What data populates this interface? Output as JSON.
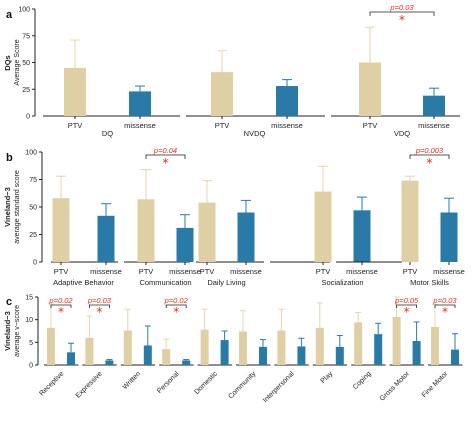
{
  "colors": {
    "PTV": "#dfcfa4",
    "missense": "#2a7aa7",
    "whisker_PTV": "#e3d6b3",
    "whisker_missense": "#2a7aa7",
    "sig": "#e0301e"
  },
  "chart_data": [
    {
      "panel": "a",
      "type": "bar",
      "row_label": "DQs",
      "ylabel": "Average Score",
      "ylim": [
        0,
        100
      ],
      "yticks": [
        0,
        25,
        50,
        75,
        100
      ],
      "groups": [
        "DQ",
        "NVDQ",
        "VDQ"
      ],
      "series": [
        {
          "name": "PTV",
          "values": [
            45,
            41,
            50
          ],
          "errors": [
            26,
            20,
            33
          ]
        },
        {
          "name": "missense",
          "values": [
            23,
            28,
            19
          ],
          "errors": [
            5,
            6,
            7
          ]
        }
      ],
      "tick_labels": [
        "PTV",
        "missense"
      ],
      "annotations": [
        {
          "group": 2,
          "text": "p=0.03",
          "star": "*"
        }
      ]
    },
    {
      "panel": "b",
      "type": "bar",
      "row_label": "Vineland−3",
      "ylabel": "average standard score",
      "ylim": [
        0,
        100
      ],
      "yticks": [
        0,
        25,
        50,
        75,
        100
      ],
      "groups": [
        "Adaptive Behavior",
        "Communication",
        "Daily Living",
        "Socialization",
        "Motor Skills"
      ],
      "series": [
        {
          "name": "PTV",
          "values": [
            58,
            57,
            54,
            64,
            74
          ],
          "errors": [
            20,
            27,
            20,
            23,
            4
          ]
        },
        {
          "name": "missense",
          "values": [
            42,
            31,
            45,
            47,
            45
          ],
          "errors": [
            11,
            12,
            11,
            12,
            13
          ]
        }
      ],
      "tick_labels": [
        "PTV",
        "missense"
      ],
      "annotations": [
        {
          "group": 1,
          "text": "p=0.04",
          "star": "*"
        },
        {
          "group": 4,
          "text": "p=0.003",
          "star": "*"
        }
      ]
    },
    {
      "panel": "c",
      "type": "bar",
      "row_label": "Vineland−3",
      "ylabel": "average v−score",
      "ylim": [
        0,
        15
      ],
      "yticks": [
        0,
        5,
        10,
        15
      ],
      "categories": [
        "Receptive",
        "Expressive",
        "Written",
        "Personal",
        "Domestic",
        "Community",
        "Interpersonal",
        "Play",
        "Coping",
        "Gross Motor",
        "Fine Motor"
      ],
      "series": [
        {
          "name": "PTV",
          "values": [
            8.2,
            6.0,
            7.6,
            3.5,
            7.8,
            7.4,
            7.6,
            8.2,
            9.4,
            10.6,
            8.4
          ],
          "errors": [
            5.3,
            4.8,
            4.7,
            2.2,
            4.5,
            4.6,
            4.7,
            5.5,
            2.2,
            4.4,
            5.0
          ]
        },
        {
          "name": "missense",
          "values": [
            2.8,
            1.0,
            4.3,
            1.0,
            5.5,
            4.0,
            4.1,
            4.0,
            6.8,
            5.3,
            3.4
          ],
          "errors": [
            2.0,
            0.2,
            4.3,
            0.2,
            2.0,
            1.6,
            1.8,
            2.5,
            2.4,
            4.2,
            3.5
          ]
        }
      ],
      "annotations": [
        {
          "group": 0,
          "text": "p=0.02",
          "star": "*"
        },
        {
          "group": 1,
          "text": "p=0.03",
          "star": "*"
        },
        {
          "group": 3,
          "text": "p=0.02",
          "star": "*"
        },
        {
          "group": 9,
          "text": "p=0.05",
          "star": "*"
        },
        {
          "group": 10,
          "text": "p=0.03",
          "star": "*"
        }
      ]
    }
  ]
}
